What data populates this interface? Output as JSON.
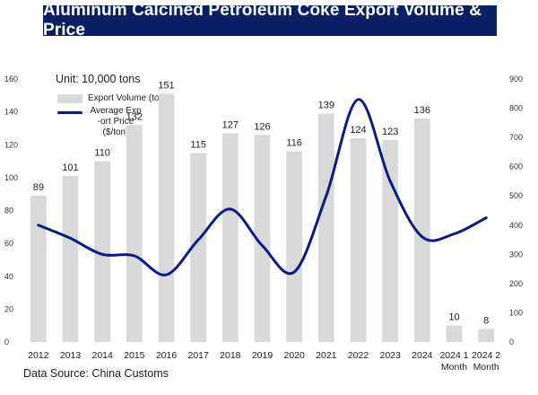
{
  "title": "Aluminum Calcined Petroleum Coke Export Volume & Price",
  "unit": "Unit: 10,000 tons",
  "source": "Data Source: China Customs",
  "legend": {
    "bar_label": "Export Volume (tons)",
    "line_label_1": "Average Exp",
    "line_label_2": "-ort Price",
    "line_label_3": "($/ton)"
  },
  "chart_data": {
    "type": "bar",
    "categories": [
      "2012",
      "2013",
      "2014",
      "2015",
      "2016",
      "2017",
      "2018",
      "2019",
      "2020",
      "2021",
      "2022",
      "2023",
      "2024",
      "2024 1 Month",
      "2024 2 Month"
    ],
    "x_tick_lines": [
      [
        "2012"
      ],
      [
        "2013"
      ],
      [
        "2014"
      ],
      [
        "2015"
      ],
      [
        "2016"
      ],
      [
        "2017"
      ],
      [
        "2018"
      ],
      [
        "2019"
      ],
      [
        "2020"
      ],
      [
        "2021"
      ],
      [
        "2022"
      ],
      [
        "2023"
      ],
      [
        "2024"
      ],
      [
        "2024 1",
        "Month"
      ],
      [
        "2024 2",
        "Month"
      ]
    ],
    "series": [
      {
        "name": "Export Volume (tons)",
        "type": "bar",
        "axis": "left",
        "color": "#d9d9d9",
        "values": [
          89,
          101,
          110,
          132,
          151,
          115,
          127,
          126,
          116,
          139,
          124,
          123,
          136,
          10,
          8
        ]
      },
      {
        "name": "Average Export Price ($/ton)",
        "type": "line",
        "axis": "right",
        "color": "#0a1a8a",
        "values": [
          400,
          355,
          300,
          295,
          230,
          350,
          455,
          330,
          240,
          500,
          830,
          550,
          360,
          370,
          425
        ]
      }
    ],
    "ylim_left": [
      0,
      160
    ],
    "yticks_left": [
      0,
      20,
      40,
      60,
      80,
      100,
      120,
      140,
      160
    ],
    "ylim_right": [
      0,
      900
    ],
    "yticks_right": [
      0,
      100,
      200,
      300,
      400,
      500,
      600,
      700,
      800,
      900
    ],
    "grid": false,
    "legend_position": "top-left"
  }
}
